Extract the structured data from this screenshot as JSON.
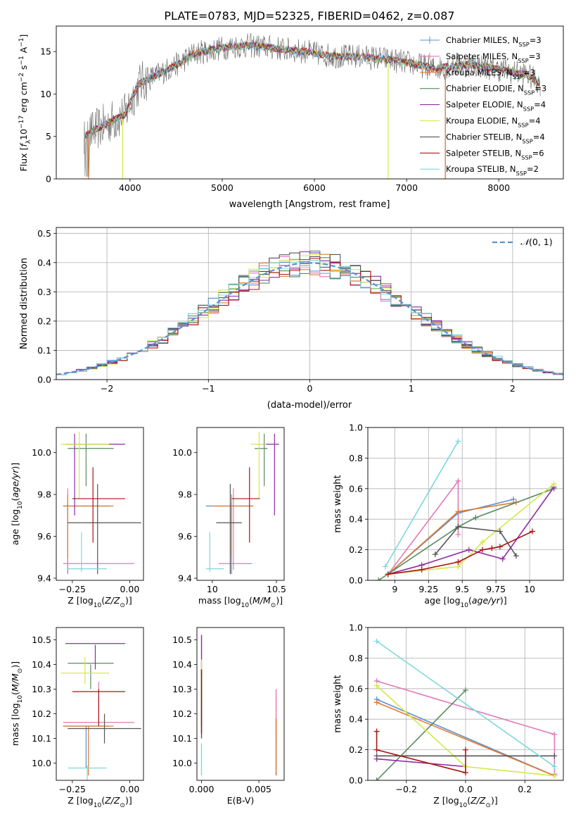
{
  "figure_title": "PLATE=0783, MJD=52325, FIBERID=0462, z=0.087",
  "colors": {
    "Chabrier MILES": "#5b8fd1",
    "Salpeter MILES": "#e07ab7",
    "Kroupa MILES": "#e37b2c",
    "Chabrier ELODIE": "#5a8a60",
    "Salpeter ELODIE": "#8e2ba6",
    "Kroupa ELODIE": "#d4e84a",
    "Chabrier STELIB": "#555555",
    "Salpeter STELIB": "#aa1414",
    "Kroupa STELIB": "#7dd8dc"
  },
  "chart_data": [
    {
      "id": "spectrum",
      "type": "line",
      "xlabel": "wavelength [Angstrom, rest frame]",
      "ylabel": "Flux [f_λ 10^-17 erg cm^-2 s^-1 A^-1]",
      "xlim": [
        3200,
        8700
      ],
      "ylim": [
        0,
        18
      ],
      "xticks": [
        4000,
        5000,
        6000,
        7000,
        8000
      ],
      "yticks": [
        0,
        5,
        10,
        15
      ],
      "grid": false,
      "legend_position": "top-right",
      "data_envelope": {
        "x": [
          3500,
          3600,
          3800,
          3950,
          4000,
          4100,
          4300,
          4500,
          4700,
          4900,
          5100,
          5300,
          5500,
          5700,
          5900,
          6100,
          6300,
          6500,
          6700,
          6900,
          7100,
          7300,
          7500,
          7700,
          7900,
          8100,
          8300,
          8450
        ],
        "y": [
          5.0,
          5.6,
          6.8,
          7.6,
          9.0,
          11.2,
          12.3,
          13.4,
          14.8,
          15.2,
          15.6,
          15.7,
          15.5,
          15.2,
          15.0,
          14.6,
          14.4,
          14.4,
          14.2,
          13.9,
          13.5,
          13.0,
          13.3,
          13.5,
          13.1,
          12.7,
          12.3,
          11.2
        ]
      },
      "series": [
        {
          "name": "Chabrier MILES",
          "n_ssp": "3"
        },
        {
          "name": "Salpeter MILES",
          "n_ssp": "3"
        },
        {
          "name": "Kroupa MILES",
          "n_ssp": "3"
        },
        {
          "name": "Chabrier ELODIE",
          "n_ssp": "3"
        },
        {
          "name": "Salpeter ELODIE",
          "n_ssp": "4"
        },
        {
          "name": "Kroupa ELODIE",
          "n_ssp": "4"
        },
        {
          "name": "Chabrier STELIB",
          "n_ssp": "4"
        },
        {
          "name": "Salpeter STELIB",
          "n_ssp": "6"
        },
        {
          "name": "Kroupa STELIB",
          "n_ssp": "2"
        }
      ]
    },
    {
      "id": "residuals",
      "type": "line",
      "xlabel": "(data-model)/error",
      "ylabel": "Normed distribution",
      "xlim": [
        -2.5,
        2.5
      ],
      "ylim": [
        0,
        0.52
      ],
      "xticks": [
        -2,
        -1,
        0,
        1,
        2
      ],
      "yticks": [
        0.0,
        0.1,
        0.2,
        0.3,
        0.4,
        0.5
      ],
      "grid": true,
      "legend_position": "top-right",
      "reference_curve": {
        "name": "N(0,1)",
        "mean": 0,
        "sigma": 1
      },
      "bin_width": 0.1
    },
    {
      "id": "age-vs-z",
      "type": "scatter",
      "xlabel": "Z [log10(Z/Z☉)]",
      "ylabel": "age [log10(age/yr)]",
      "xlim": [
        -0.32,
        0.06
      ],
      "ylim": [
        9.39,
        10.12
      ],
      "xticks": [
        -0.25,
        0.0
      ],
      "xtick_labels": [
        "−0.25",
        "0.00"
      ],
      "yticks": [
        9.4,
        9.6,
        9.8,
        10.0
      ],
      "grid": false
    },
    {
      "id": "age-vs-mass",
      "type": "scatter",
      "xlabel": "mass [log10(M/M☉)]",
      "ylabel": "",
      "xlim": [
        9.88,
        10.56
      ],
      "ylim": [
        9.39,
        10.12
      ],
      "xticks": [
        10.0,
        10.5
      ],
      "yticks": [
        9.4,
        9.6,
        9.8,
        10.0
      ],
      "grid": false
    },
    {
      "id": "weight-vs-age",
      "type": "line",
      "xlabel": "age [log10(age/yr)]",
      "ylabel": "mass weight",
      "xlim": [
        8.8,
        10.25
      ],
      "ylim": [
        0,
        1.0
      ],
      "xticks": [
        9.0,
        9.25,
        9.5,
        9.75,
        10.0
      ],
      "yticks": [
        0.0,
        0.2,
        0.4,
        0.6,
        0.8,
        1.0
      ],
      "grid": true,
      "series": [
        {
          "name": "Chabrier MILES",
          "x": [
            8.95,
            9.47,
            9.88
          ],
          "y": [
            0.04,
            0.44,
            0.53
          ]
        },
        {
          "name": "Salpeter MILES",
          "x": [
            8.95,
            9.47,
            9.47
          ],
          "y": [
            0.04,
            0.65,
            0.3
          ]
        },
        {
          "name": "Kroupa MILES",
          "x": [
            8.95,
            9.47,
            9.9
          ],
          "y": [
            0.04,
            0.45,
            0.51
          ]
        },
        {
          "name": "Chabrier ELODIE",
          "x": [
            8.88,
            9.47,
            9.6,
            10.18
          ],
          "y": [
            0.0,
            0.35,
            0.41,
            0.6
          ]
        },
        {
          "name": "Salpeter ELODIE",
          "x": [
            8.95,
            9.2,
            9.55,
            9.8,
            10.18
          ],
          "y": [
            0.04,
            0.1,
            0.2,
            0.14,
            0.61
          ]
        },
        {
          "name": "Kroupa ELODIE",
          "x": [
            8.95,
            9.47,
            9.65,
            10.18
          ],
          "y": [
            0.04,
            0.09,
            0.25,
            0.63
          ]
        },
        {
          "name": "Chabrier STELIB",
          "x": [
            9.3,
            9.47,
            9.78,
            9.9
          ],
          "y": [
            0.17,
            0.35,
            0.32,
            0.16
          ]
        },
        {
          "name": "Salpeter STELIB",
          "x": [
            8.95,
            9.2,
            9.47,
            9.65,
            9.72,
            9.78,
            10.02
          ],
          "y": [
            0.04,
            0.07,
            0.12,
            0.2,
            0.21,
            0.22,
            0.32
          ]
        },
        {
          "name": "Kroupa STELIB",
          "x": [
            8.93,
            9.47
          ],
          "y": [
            0.09,
            0.91
          ]
        }
      ]
    },
    {
      "id": "mass-vs-z",
      "type": "scatter",
      "xlabel": "Z [log10(Z/Z☉)]",
      "ylabel": "mass [log10(M/M☉)]",
      "xlim": [
        -0.32,
        0.06
      ],
      "ylim": [
        9.93,
        10.55
      ],
      "xticks": [
        -0.25,
        0.0
      ],
      "xtick_labels": [
        "−0.25",
        "0.00"
      ],
      "yticks": [
        10.0,
        10.1,
        10.2,
        10.3,
        10.4,
        10.5
      ],
      "grid": false
    },
    {
      "id": "mass-vs-ebv",
      "type": "scatter",
      "xlabel": "E(B-V)",
      "ylabel": "",
      "xlim": [
        -0.0004,
        0.0072
      ],
      "ylim": [
        9.93,
        10.55
      ],
      "xticks": [
        0.0,
        0.005
      ],
      "xtick_labels": [
        "0.000",
        "0.005"
      ],
      "yticks": [
        10.0,
        10.1,
        10.2,
        10.3,
        10.4,
        10.5
      ],
      "grid": false
    },
    {
      "id": "weight-vs-z",
      "type": "line",
      "xlabel": "Z [log10(Z/Z☉)]",
      "ylabel": "mass weight",
      "xlim": [
        -0.33,
        0.33
      ],
      "ylim": [
        0,
        1.0
      ],
      "xticks": [
        -0.2,
        0.0,
        0.2
      ],
      "xtick_labels": [
        "−0.2",
        "0.0",
        "0.2"
      ],
      "yticks": [
        0.0,
        0.2,
        0.4,
        0.6,
        0.8,
        1.0
      ],
      "grid": true,
      "series": [
        {
          "name": "Chabrier MILES",
          "x": [
            -0.3,
            0.3
          ],
          "y": [
            0.53,
            0.03
          ]
        },
        {
          "name": "Salpeter MILES",
          "x": [
            -0.3,
            0.3,
            0.3
          ],
          "y": [
            0.65,
            0.3,
            0.04
          ]
        },
        {
          "name": "Kroupa MILES",
          "x": [
            -0.3,
            0.3
          ],
          "y": [
            0.51,
            0.03
          ]
        },
        {
          "name": "Chabrier ELODIE",
          "x": [
            -0.3,
            0.0
          ],
          "y": [
            0.0,
            0.59
          ]
        },
        {
          "name": "Salpeter ELODIE",
          "x": [
            -0.3,
            0.0
          ],
          "y": [
            0.14,
            0.09
          ]
        },
        {
          "name": "Kroupa ELODIE",
          "x": [
            -0.3,
            0.0,
            0.3
          ],
          "y": [
            0.62,
            0.09,
            0.03
          ]
        },
        {
          "name": "Chabrier STELIB",
          "x": [
            -0.3,
            0.3
          ],
          "y": [
            0.16,
            0.16
          ]
        },
        {
          "name": "Salpeter STELIB",
          "x": [
            -0.3,
            -0.3,
            0.0,
            0.0
          ],
          "y": [
            0.32,
            0.2,
            0.05,
            0.2
          ]
        },
        {
          "name": "Kroupa STELIB",
          "x": [
            -0.3,
            0.3
          ],
          "y": [
            0.91,
            0.09
          ]
        }
      ]
    }
  ],
  "error_bars": [
    {
      "name": "Chabrier MILES",
      "z": -0.27,
      "z_err": [
        -0.29,
        -0.09
      ],
      "age": 9.745,
      "age_err": [
        9.42,
        9.76
      ],
      "mass": 10.15,
      "mass_err": [
        9.95,
        10.32
      ],
      "mass_range": [
        9.98,
        10.15
      ],
      "ebv": 0.0065,
      "ebv_err": [
        9.95,
        10.18
      ]
    },
    {
      "name": "Salpeter MILES",
      "z": -0.27,
      "z_err": [
        -0.29,
        0.02
      ],
      "age": 9.47,
      "age_err": [
        9.44,
        9.83
      ],
      "mass": 10.165,
      "mass_err": [
        10.05,
        10.31
      ],
      "mass_range": [
        10.15,
        10.33
      ],
      "ebv": 0.0065,
      "ebv_err": [
        10.1,
        10.3
      ]
    },
    {
      "name": "Kroupa MILES",
      "z": -0.27,
      "z_err": [
        -0.29,
        -0.07
      ],
      "age": 9.745,
      "age_err": [
        9.5,
        9.8
      ],
      "mass": 10.15,
      "mass_err": [
        10.0,
        10.32
      ],
      "mass_range": [
        9.95,
        10.15
      ],
      "ebv": 0.0065,
      "ebv_err": [
        9.95,
        10.18
      ]
    },
    {
      "name": "Chabrier ELODIE",
      "z": -0.19,
      "z_err": [
        -0.27,
        -0.07
      ],
      "age": 10.02,
      "age_err": [
        9.84,
        10.09
      ],
      "mass": 10.405,
      "mass_err": [
        10.33,
        10.43
      ],
      "mass_range": [
        10.3,
        10.4
      ],
      "ebv": 0.0,
      "ebv_err": [
        10.15,
        10.38
      ]
    },
    {
      "name": "Salpeter ELODIE",
      "z": -0.24,
      "z_err": [
        -0.28,
        -0.02
      ],
      "age": 10.04,
      "age_err": [
        9.7,
        10.09
      ],
      "mass": 10.485,
      "mass_err": [
        10.39,
        10.52
      ],
      "mass_range": [
        10.38,
        10.48
      ],
      "ebv": 0.0,
      "ebv_err": [
        10.36,
        10.52
      ]
    },
    {
      "name": "Kroupa ELODIE",
      "z": -0.22,
      "z_err": [
        -0.3,
        -0.09
      ],
      "age": 10.04,
      "age_err": [
        9.78,
        10.1
      ],
      "mass": 10.365,
      "mass_err": [
        10.3,
        10.42
      ],
      "mass_range": [
        10.32,
        10.43
      ],
      "ebv": 0.0,
      "ebv_err": [
        10.25,
        10.42
      ]
    },
    {
      "name": "Chabrier STELIB",
      "z": -0.14,
      "z_err": [
        -0.27,
        0.05
      ],
      "age": 9.665,
      "age_err": [
        9.42,
        9.85
      ],
      "mass": 10.14,
      "mass_err": [
        10.03,
        10.23
      ],
      "mass_range": [
        10.08,
        10.2
      ],
      "ebv": 0.0,
      "ebv_err": [
        10.1,
        10.38
      ]
    },
    {
      "name": "Salpeter STELIB",
      "z": -0.16,
      "z_err": [
        -0.25,
        -0.02
      ],
      "age": 9.78,
      "age_err": [
        9.57,
        9.93
      ],
      "mass": 10.29,
      "mass_err": [
        10.15,
        10.37
      ],
      "mass_range": [
        10.15,
        10.3
      ],
      "ebv": 0.0,
      "ebv_err": [
        10.12,
        10.38
      ]
    },
    {
      "name": "Kroupa STELIB",
      "z": -0.21,
      "z_err": [
        -0.27,
        -0.1
      ],
      "age": 9.445,
      "age_err": [
        9.43,
        9.62
      ],
      "mass": 9.98,
      "mass_err": [
        9.95,
        10.09
      ],
      "mass_range": [
        9.92,
        9.99
      ],
      "ebv": 0.0,
      "ebv_err": [
        9.95,
        10.08
      ]
    }
  ]
}
